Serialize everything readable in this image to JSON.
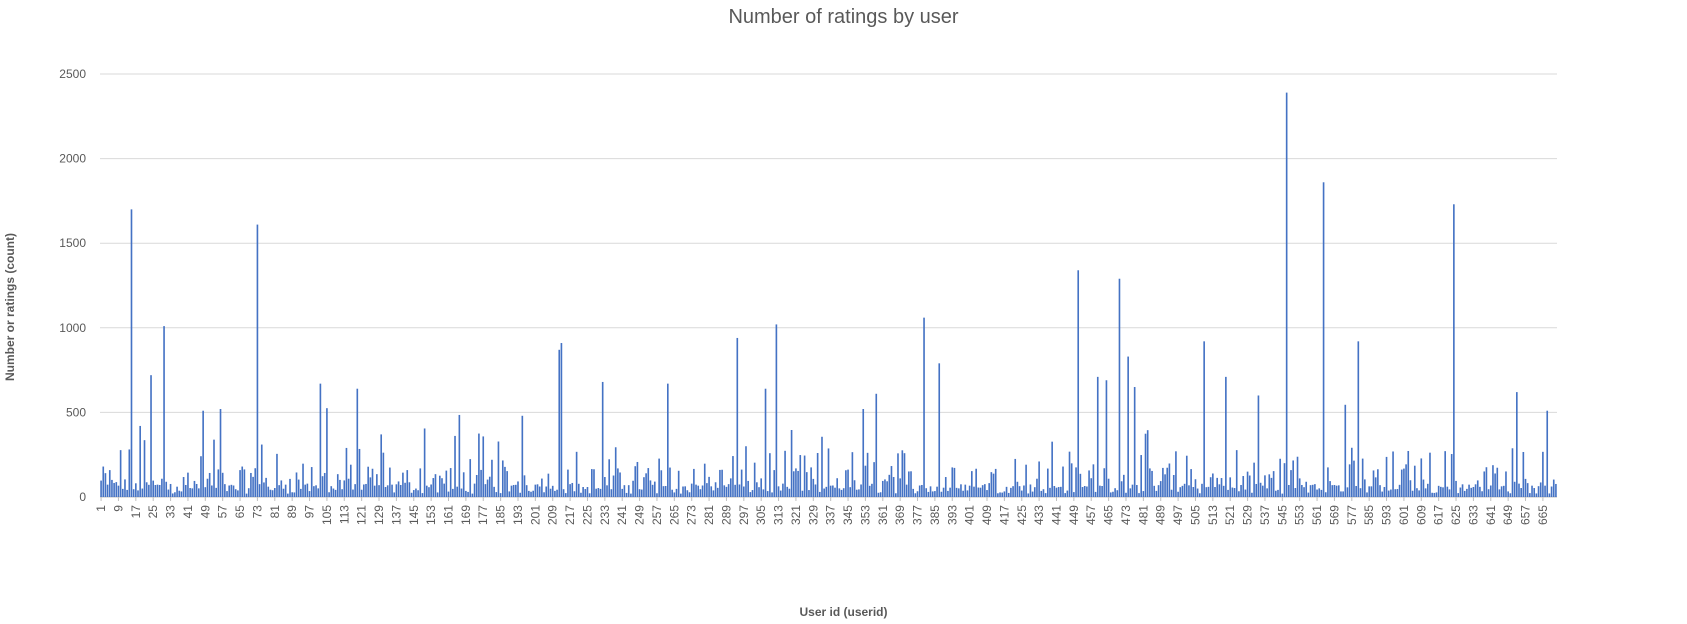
{
  "chart_data": {
    "type": "bar",
    "title": "Number of ratings by user",
    "xlabel": "User id (userid)",
    "ylabel": "Number or ratings (count)",
    "ylim": [
      0,
      2500
    ],
    "yticks": [
      0,
      500,
      1000,
      1500,
      2000,
      2500
    ],
    "grid": true,
    "legend": "none",
    "bar_color": "#4472C4",
    "x_range": [
      1,
      671
    ],
    "x_tick_labels": [
      "1",
      "9",
      "17",
      "25",
      "33",
      "41",
      "49",
      "57",
      "65",
      "73",
      "81",
      "89",
      "97",
      "105",
      "113",
      "121",
      "129",
      "137",
      "145",
      "153",
      "161",
      "169",
      "177",
      "185",
      "193",
      "201",
      "209",
      "217",
      "225",
      "233",
      "241",
      "249",
      "257",
      "265",
      "273",
      "281",
      "289",
      "297",
      "305",
      "313",
      "321",
      "329",
      "337",
      "345",
      "353",
      "361",
      "369",
      "377",
      "385",
      "393",
      "401",
      "409",
      "417",
      "425",
      "433",
      "441",
      "449",
      "457",
      "465",
      "473",
      "481",
      "489",
      "497",
      "505",
      "513",
      "521",
      "529",
      "537",
      "545",
      "553",
      "561",
      "569",
      "577",
      "585",
      "593",
      "601",
      "609",
      "617",
      "625",
      "633",
      "641",
      "649",
      "657",
      "665"
    ],
    "peaks": [
      {
        "x": 15,
        "y": 1700
      },
      {
        "x": 19,
        "y": 420
      },
      {
        "x": 24,
        "y": 720
      },
      {
        "x": 30,
        "y": 1010
      },
      {
        "x": 48,
        "y": 510
      },
      {
        "x": 56,
        "y": 520
      },
      {
        "x": 73,
        "y": 1610
      },
      {
        "x": 75,
        "y": 310
      },
      {
        "x": 102,
        "y": 670
      },
      {
        "x": 105,
        "y": 525
      },
      {
        "x": 119,
        "y": 640
      },
      {
        "x": 130,
        "y": 370
      },
      {
        "x": 150,
        "y": 405
      },
      {
        "x": 166,
        "y": 485
      },
      {
        "x": 195,
        "y": 480
      },
      {
        "x": 212,
        "y": 870
      },
      {
        "x": 213,
        "y": 910
      },
      {
        "x": 232,
        "y": 680
      },
      {
        "x": 262,
        "y": 670
      },
      {
        "x": 294,
        "y": 940
      },
      {
        "x": 307,
        "y": 640
      },
      {
        "x": 312,
        "y": 1020
      },
      {
        "x": 352,
        "y": 520
      },
      {
        "x": 358,
        "y": 610
      },
      {
        "x": 380,
        "y": 1060
      },
      {
        "x": 387,
        "y": 790
      },
      {
        "x": 451,
        "y": 1340
      },
      {
        "x": 460,
        "y": 710
      },
      {
        "x": 464,
        "y": 690
      },
      {
        "x": 470,
        "y": 1290
      },
      {
        "x": 474,
        "y": 830
      },
      {
        "x": 477,
        "y": 650
      },
      {
        "x": 509,
        "y": 920
      },
      {
        "x": 519,
        "y": 710
      },
      {
        "x": 534,
        "y": 600
      },
      {
        "x": 547,
        "y": 2390
      },
      {
        "x": 564,
        "y": 1860
      },
      {
        "x": 574,
        "y": 545
      },
      {
        "x": 580,
        "y": 920
      },
      {
        "x": 624,
        "y": 1730
      },
      {
        "x": 653,
        "y": 620
      },
      {
        "x": 667,
        "y": 510
      }
    ]
  }
}
